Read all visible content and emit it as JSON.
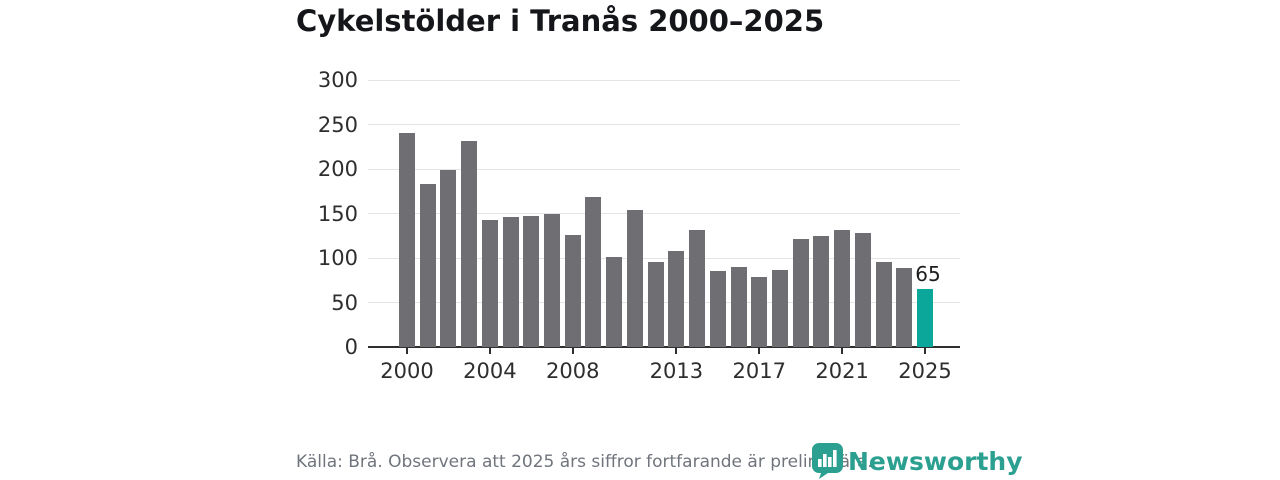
{
  "header": {
    "title": "Cykelstölder i Tranås 2000–2025"
  },
  "chart_data": {
    "type": "bar",
    "title": "Cykelstölder i Tranås 2000–2025",
    "categories": [
      2000,
      2001,
      2002,
      2003,
      2004,
      2005,
      2006,
      2007,
      2008,
      2009,
      2010,
      2011,
      2012,
      2013,
      2014,
      2015,
      2016,
      2017,
      2018,
      2019,
      2020,
      2021,
      2022,
      2023,
      2024,
      2025
    ],
    "values": [
      240,
      183,
      199,
      231,
      143,
      146,
      147,
      149,
      126,
      169,
      101,
      154,
      95,
      108,
      131,
      85,
      90,
      79,
      86,
      121,
      125,
      132,
      128,
      95,
      89,
      65
    ],
    "xlabel": "",
    "ylabel": "",
    "ylim": [
      0,
      300
    ],
    "yticks": [
      0,
      50,
      100,
      150,
      200,
      250,
      300
    ],
    "xticks": [
      2000,
      2004,
      2008,
      2013,
      2017,
      2021,
      2025
    ],
    "grid": "horizontal",
    "legend": "none",
    "bar_color": "#6F6E73",
    "highlight_index": 25,
    "highlight_color": "#0BA79B",
    "annotation": {
      "index": 25,
      "label": "65"
    }
  },
  "footer": {
    "source_note": "Källa: Brå. Observera att 2025 års siffror fortfarande är preliminära."
  },
  "branding": {
    "logo_text": "Newsworthy",
    "logo_color": "#2BA091",
    "logo_icon": "newsworthy-badge-bar-chart-icon"
  }
}
